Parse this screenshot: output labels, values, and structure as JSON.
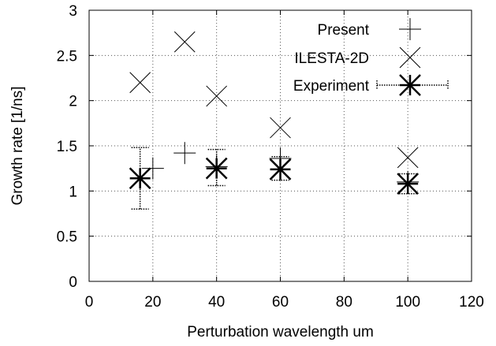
{
  "chart_data": {
    "type": "scatter",
    "title": "",
    "xlabel": "Perturbation wavelength um",
    "ylabel": "Growth rate [1/ns]",
    "xlim": [
      0,
      120
    ],
    "ylim": [
      0,
      3
    ],
    "xticks": [
      0,
      20,
      40,
      60,
      80,
      100,
      120
    ],
    "yticks": [
      0,
      0.5,
      1,
      1.5,
      2,
      2.5,
      3
    ],
    "xtick_labels": [
      "0",
      "20",
      "40",
      "60",
      "80",
      "100",
      "120"
    ],
    "ytick_labels": [
      "0",
      "0.5",
      "1",
      "1.5",
      "2",
      "2.5",
      "3"
    ],
    "grid": true,
    "legend_position": "top-right",
    "series": [
      {
        "name": "Present",
        "marker": "plus",
        "points": [
          {
            "x": 20,
            "y": 1.25
          },
          {
            "x": 30,
            "y": 1.42
          },
          {
            "x": 40,
            "y": 1.27
          },
          {
            "x": 60,
            "y": 1.36
          },
          {
            "x": 100,
            "y": 1.1
          }
        ]
      },
      {
        "name": "ILESTA-2D",
        "marker": "cross",
        "points": [
          {
            "x": 16,
            "y": 2.2
          },
          {
            "x": 30,
            "y": 2.65
          },
          {
            "x": 40,
            "y": 2.05
          },
          {
            "x": 60,
            "y": 1.7
          },
          {
            "x": 100,
            "y": 1.37
          }
        ]
      },
      {
        "name": "Experiment",
        "marker": "asterisk-errorbar",
        "points": [
          {
            "x": 16,
            "y": 1.14,
            "ylow": 0.8,
            "yhigh": 1.48
          },
          {
            "x": 40,
            "y": 1.25,
            "ylow": 1.06,
            "yhigh": 1.46
          },
          {
            "x": 60,
            "y": 1.24,
            "ylow": 1.12,
            "yhigh": 1.38
          },
          {
            "x": 100,
            "y": 1.08,
            "ylow": 0.97,
            "yhigh": 1.19
          }
        ]
      }
    ]
  }
}
